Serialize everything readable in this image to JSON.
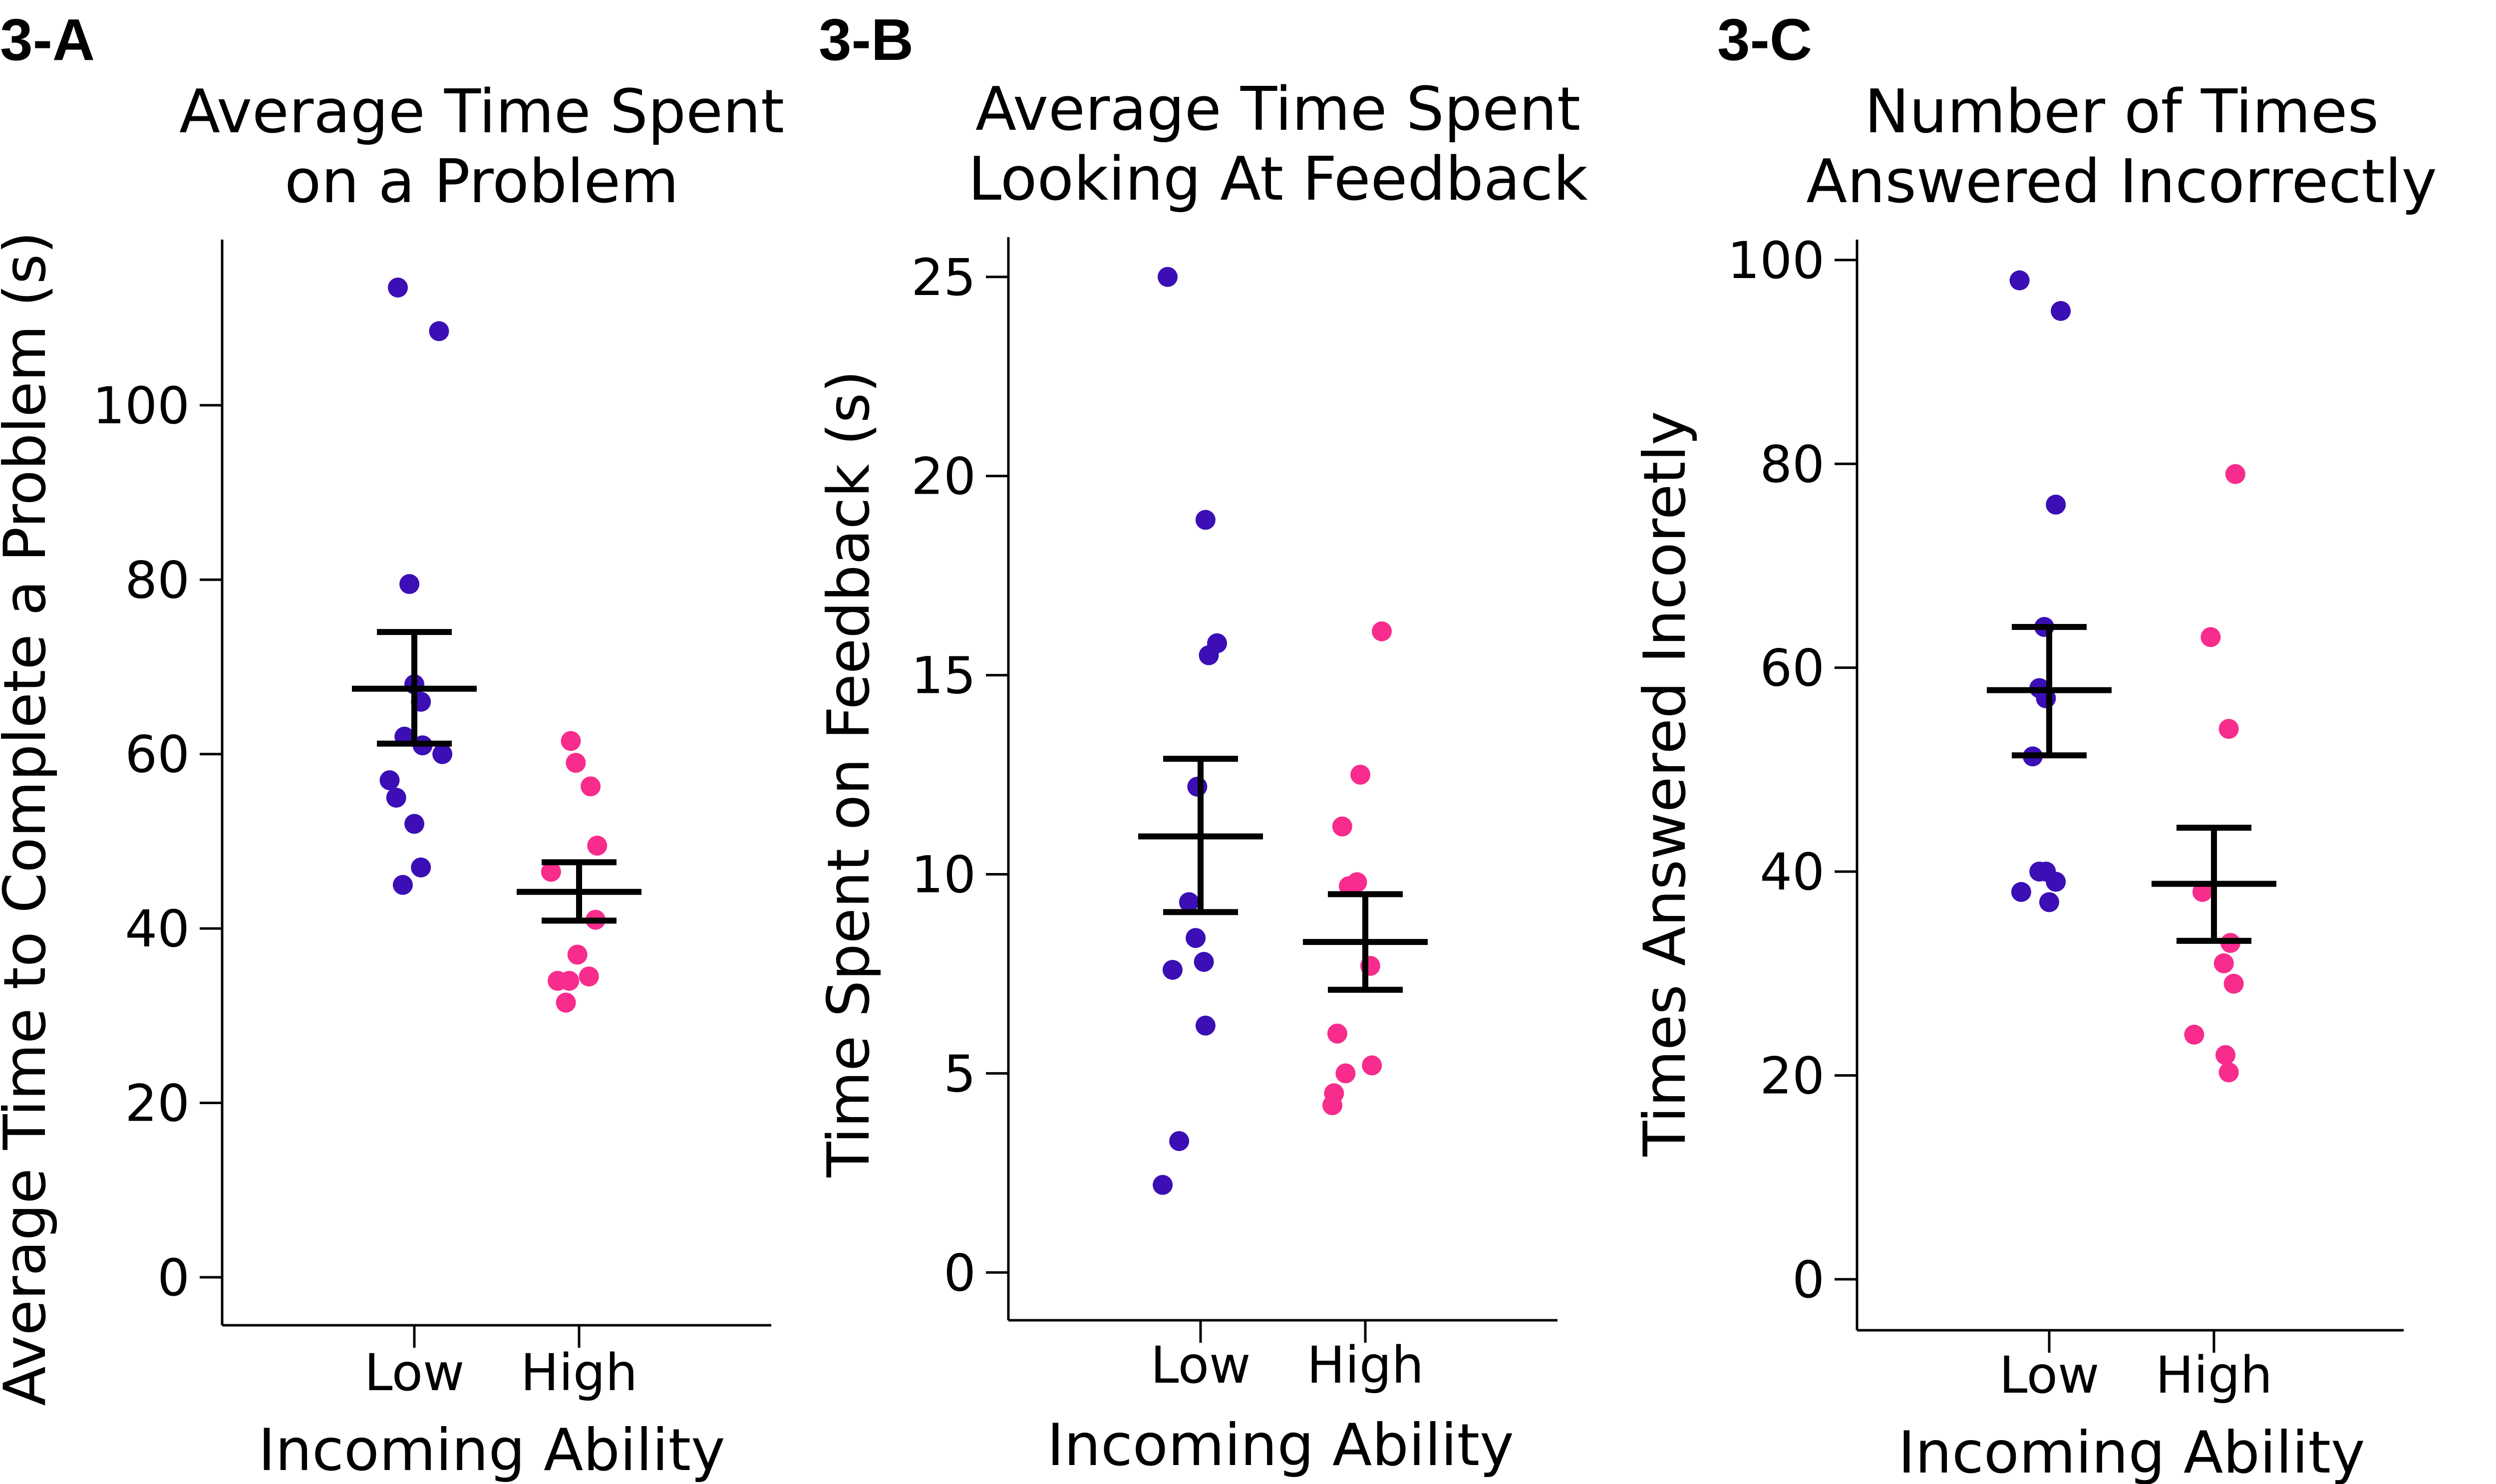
{
  "colors": {
    "low": "#3b0fb5",
    "high": "#f72c8c",
    "axis": "#000000",
    "error": "#000000"
  },
  "chart_data": [
    {
      "type": "scatter",
      "panel_label": "3-A",
      "title_lines": [
        "Average Time Spent",
        "on a Problem"
      ],
      "xlabel": "Incoming Ability",
      "ylabel": "Average Time to Complete a Problem (s)",
      "categories": [
        "Low",
        "High"
      ],
      "ylim": [
        -5.5,
        119
      ],
      "yticks": [
        0,
        20,
        40,
        60,
        80,
        100
      ],
      "series": [
        {
          "name": "Low",
          "points": [
            [
              -0.1,
              113.5
            ],
            [
              0.15,
              108.5
            ],
            [
              -0.03,
              79.5
            ],
            [
              0.0,
              68
            ],
            [
              0.04,
              66
            ],
            [
              -0.06,
              62
            ],
            [
              0.05,
              61
            ],
            [
              0.17,
              60
            ],
            [
              -0.15,
              57
            ],
            [
              -0.11,
              55
            ],
            [
              0.0,
              52
            ],
            [
              0.04,
              47
            ],
            [
              -0.07,
              45
            ]
          ],
          "mean": 67.5,
          "err_low": 61.2,
          "err_high": 74.0
        },
        {
          "name": "High",
          "points": [
            [
              -0.05,
              61.5
            ],
            [
              -0.02,
              59
            ],
            [
              0.07,
              56.3
            ],
            [
              0.11,
              49.5
            ],
            [
              -0.17,
              46.5
            ],
            [
              0.1,
              41
            ],
            [
              -0.01,
              37
            ],
            [
              0.06,
              34.5
            ],
            [
              -0.13,
              34
            ],
            [
              -0.06,
              34
            ],
            [
              -0.08,
              31.5
            ]
          ],
          "mean": 44.2,
          "err_low": 40.9,
          "err_high": 47.6
        }
      ]
    },
    {
      "type": "scatter",
      "panel_label": "3-B",
      "title_lines": [
        "Average Time Spent",
        "Looking At Feedback"
      ],
      "xlabel": "Incoming Ability",
      "ylabel": "Time Spent on Feedback (s)",
      "categories": [
        "Low",
        "High"
      ],
      "ylim": [
        -1.2,
        26
      ],
      "yticks": [
        0,
        5,
        10,
        15,
        20,
        25
      ],
      "series": [
        {
          "name": "Low",
          "points": [
            [
              -0.2,
              25
            ],
            [
              0.03,
              18.9
            ],
            [
              0.1,
              15.8
            ],
            [
              0.05,
              15.5
            ],
            [
              -0.02,
              12.2
            ],
            [
              -0.07,
              9.3
            ],
            [
              -0.03,
              8.4
            ],
            [
              0.02,
              7.8
            ],
            [
              -0.17,
              7.6
            ],
            [
              0.03,
              6.2
            ],
            [
              -0.13,
              3.3
            ],
            [
              -0.23,
              2.2
            ]
          ],
          "mean": 10.95,
          "err_low": 9.05,
          "err_high": 12.9
        },
        {
          "name": "High",
          "points": [
            [
              0.1,
              16.1
            ],
            [
              -0.03,
              12.5
            ],
            [
              -0.14,
              11.2
            ],
            [
              -0.05,
              9.8
            ],
            [
              -0.1,
              9.7
            ],
            [
              0.03,
              7.7
            ],
            [
              -0.17,
              6
            ],
            [
              -0.12,
              5
            ],
            [
              0.04,
              5.2
            ],
            [
              -0.19,
              4.5
            ],
            [
              -0.2,
              4.2
            ]
          ],
          "mean": 8.3,
          "err_low": 7.1,
          "err_high": 9.5
        }
      ]
    },
    {
      "type": "scatter",
      "panel_label": "3-C",
      "title_lines": [
        "Number of Times",
        "Answered Incorrectly"
      ],
      "xlabel": "Incoming Ability",
      "ylabel": "Times Answered Incoretly",
      "categories": [
        "Low",
        "High"
      ],
      "ylim": [
        -5,
        102
      ],
      "yticks": [
        0,
        20,
        40,
        60,
        80,
        100
      ],
      "series": [
        {
          "name": "Low",
          "points": [
            [
              -0.18,
              98
            ],
            [
              0.07,
              95
            ],
            [
              0.04,
              76
            ],
            [
              -0.03,
              64
            ],
            [
              -0.06,
              58
            ],
            [
              -0.02,
              57
            ],
            [
              -0.1,
              51.3
            ],
            [
              -0.06,
              40
            ],
            [
              -0.02,
              40
            ],
            [
              0.04,
              39
            ],
            [
              -0.17,
              38
            ],
            [
              0.0,
              37
            ]
          ],
          "mean": 57.8,
          "err_low": 51.4,
          "err_high": 64.0
        },
        {
          "name": "High",
          "points": [
            [
              0.13,
              79
            ],
            [
              -0.02,
              63
            ],
            [
              0.09,
              54
            ],
            [
              -0.07,
              38
            ],
            [
              0.1,
              33
            ],
            [
              0.06,
              31
            ],
            [
              0.12,
              29
            ],
            [
              -0.12,
              24
            ],
            [
              0.07,
              22
            ],
            [
              0.09,
              20.3
            ]
          ],
          "mean": 38.8,
          "err_low": 33.2,
          "err_high": 44.3
        }
      ]
    }
  ]
}
